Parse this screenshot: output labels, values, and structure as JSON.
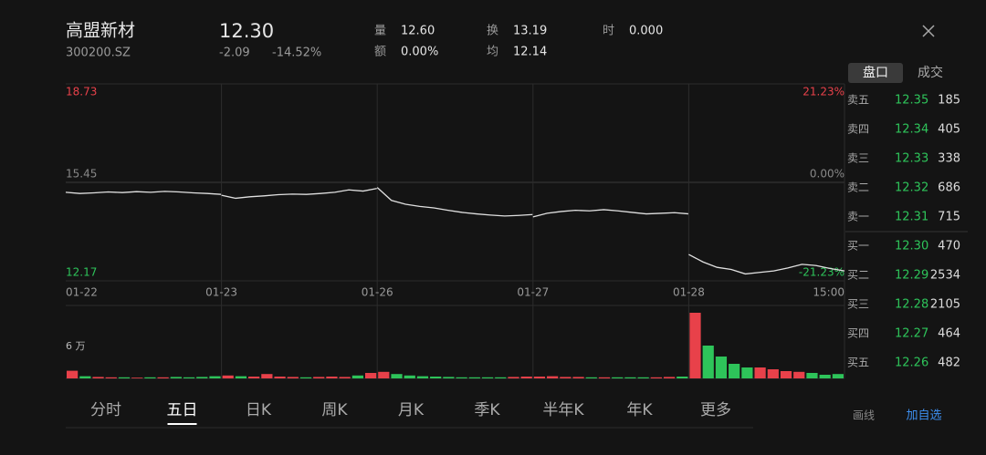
{
  "header": {
    "name": "高盟新材",
    "code": "300200.SZ",
    "price": "12.30",
    "change": "-2.09",
    "change_pct": "-14.52%",
    "stats": [
      {
        "label": "量",
        "value": "12.60"
      },
      {
        "label": "额",
        "value": "0.00%"
      },
      {
        "label": "换",
        "value": "13.19"
      },
      {
        "label": "均",
        "value": "12.14"
      },
      {
        "label": "时",
        "value": "0.000"
      }
    ]
  },
  "tabs": [
    "盘口",
    "成交"
  ],
  "order_book": [
    {
      "label": "卖五",
      "price": "12.35",
      "volume": "185"
    },
    {
      "label": "卖四",
      "price": "12.34",
      "volume": "405"
    },
    {
      "label": "卖三",
      "price": "12.33",
      "volume": "338"
    },
    {
      "label": "卖二",
      "price": "12.32",
      "volume": "686"
    },
    {
      "label": "卖一",
      "price": "12.31",
      "volume": "715"
    },
    {
      "label": "买一",
      "price": "12.30",
      "volume": "470"
    },
    {
      "label": "买二",
      "price": "12.29",
      "volume": "2534"
    },
    {
      "label": "买三",
      "price": "12.28",
      "volume": "2105"
    },
    {
      "label": "买四",
      "price": "12.27",
      "volume": "464"
    },
    {
      "label": "买五",
      "price": "12.26",
      "volume": "482"
    }
  ],
  "price_axis": {
    "max": "18.73",
    "mid": "15.45",
    "min": "12.17",
    "max_pct": "21.23%",
    "mid_pct": "0.00%",
    "min_pct": "-21.23%"
  },
  "volume_axis": {
    "label": "6 万"
  },
  "end_time": "15:00",
  "days": [
    {
      "label": "01-22",
      "prices": [
        15.12,
        15.08,
        15.1,
        15.13,
        15.11,
        15.14,
        15.12,
        15.15,
        15.13,
        15.1,
        15.08,
        15.05
      ],
      "volumes": [
        2.1,
        0.6,
        0.4,
        0.3,
        0.3,
        0.2,
        0.3,
        0.3,
        0.4,
        0.3,
        0.4,
        0.6
      ]
    },
    {
      "label": "01-23",
      "prices": [
        15.02,
        14.92,
        14.97,
        15.0,
        15.04,
        15.06,
        15.05,
        15.08,
        15.12,
        15.2,
        15.16,
        15.25
      ],
      "volumes": [
        0.8,
        0.6,
        0.5,
        1.2,
        0.5,
        0.4,
        0.3,
        0.4,
        0.5,
        0.4,
        0.8,
        1.5
      ]
    },
    {
      "label": "01-26",
      "prices": [
        15.28,
        14.85,
        14.72,
        14.65,
        14.6,
        14.52,
        14.45,
        14.4,
        14.36,
        14.33,
        14.35,
        14.38
      ],
      "volumes": [
        1.8,
        1.2,
        0.8,
        0.6,
        0.5,
        0.4,
        0.3,
        0.3,
        0.3,
        0.3,
        0.4,
        0.5
      ]
    },
    {
      "label": "01-27",
      "prices": [
        14.3,
        14.42,
        14.48,
        14.52,
        14.5,
        14.54,
        14.5,
        14.45,
        14.4,
        14.42,
        14.44,
        14.4
      ],
      "volumes": [
        0.5,
        0.6,
        0.4,
        0.4,
        0.3,
        0.3,
        0.3,
        0.3,
        0.3,
        0.3,
        0.4,
        0.5
      ]
    },
    {
      "label": "01-28",
      "prices": [
        13.05,
        12.8,
        12.62,
        12.55,
        12.4,
        12.45,
        12.5,
        12.6,
        12.72,
        12.68,
        12.58,
        12.5
      ],
      "volumes": [
        18,
        9,
        6,
        4,
        3,
        3,
        2.5,
        2,
        1.8,
        1.5,
        1,
        1.2
      ]
    }
  ],
  "periods": [
    "分时",
    "五日",
    "日K",
    "周K",
    "月K",
    "季K",
    "半年K",
    "年K",
    "更多"
  ],
  "actions": {
    "draw": "画线",
    "watch": "加自选"
  }
}
